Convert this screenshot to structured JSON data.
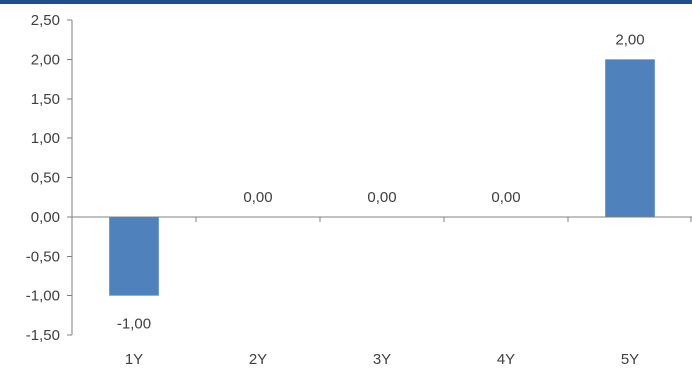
{
  "colors": {
    "top_border": "#1f4e8c",
    "bar": "#4f81bd",
    "axis": "#808080",
    "text": "#404040"
  },
  "chart_data": {
    "type": "bar",
    "categories": [
      "1Y",
      "2Y",
      "3Y",
      "4Y",
      "5Y"
    ],
    "values": [
      -1.0,
      0.0,
      0.0,
      0.0,
      2.0
    ],
    "data_labels": [
      "-1,00",
      "0,00",
      "0,00",
      "0,00",
      "2,00"
    ],
    "y_ticks": [
      2.5,
      2.0,
      1.5,
      1.0,
      0.5,
      0.0,
      -0.5,
      -1.0,
      -1.5
    ],
    "y_tick_labels": [
      "2,50",
      "2,00",
      "1,50",
      "1,00",
      "0,50",
      "0,00",
      "-0,50",
      "-1,00",
      "-1,50"
    ],
    "ylim": [
      -1.5,
      2.5
    ],
    "title": "",
    "xlabel": "",
    "ylabel": "",
    "grid": false,
    "legend": "none"
  }
}
